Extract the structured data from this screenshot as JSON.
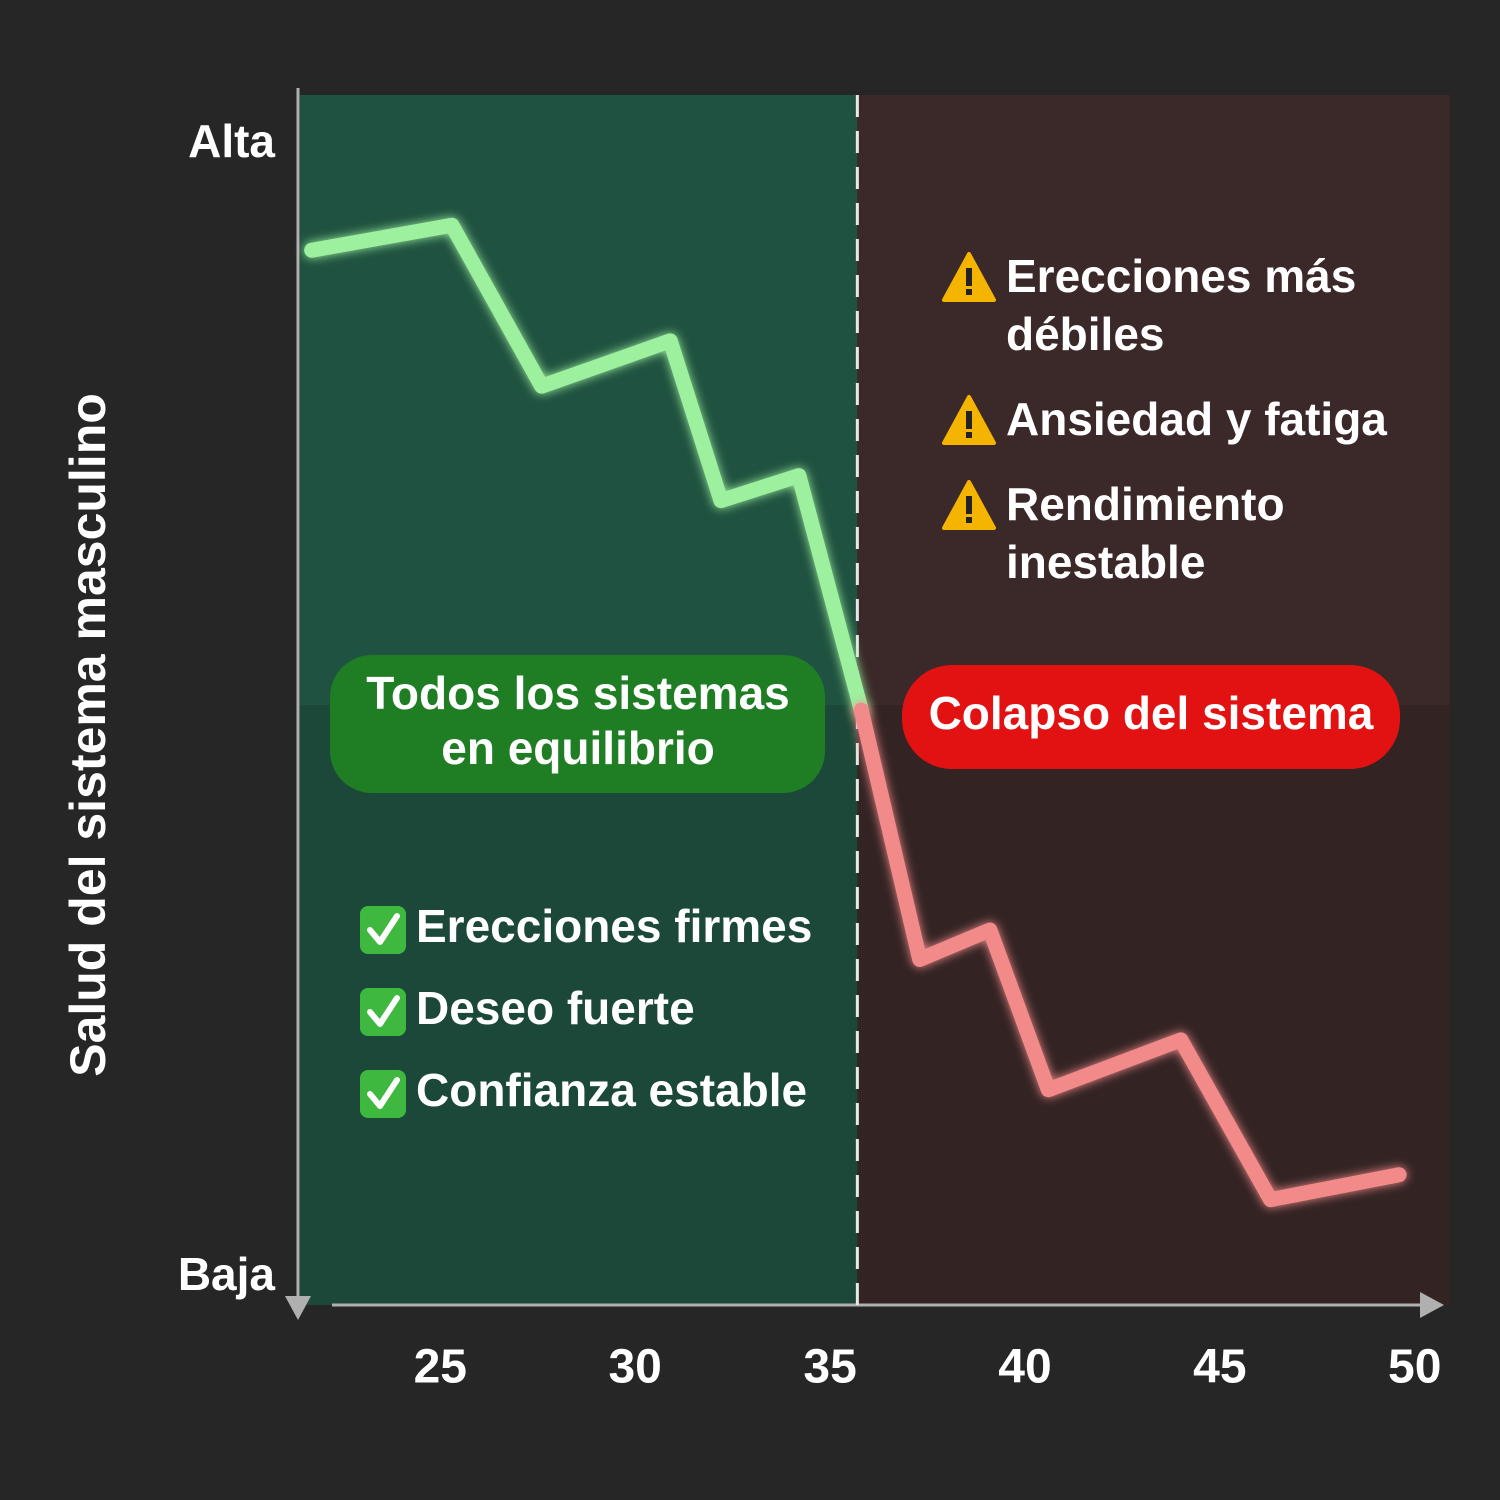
{
  "chart_data": {
    "type": "line",
    "y_axis_title": "Salud del sistema masculino",
    "x": [
      21.7,
      25.3,
      27.6,
      30.9,
      32.2,
      34.2,
      35.8,
      37.3,
      39.1,
      40.6,
      44.0,
      46.3,
      49.6
    ],
    "series": [
      {
        "color": "#9df09e",
        "values": [
          90.7,
          92.9,
          78.7,
          82.7,
          68.6,
          70.8,
          50.1,
          null,
          null,
          null,
          null,
          null,
          null
        ]
      },
      {
        "color": "#f28a8a",
        "values": [
          null,
          null,
          null,
          null,
          null,
          null,
          50.1,
          28.1,
          30.7,
          16.6,
          21.0,
          6.9,
          9.1
        ]
      }
    ],
    "xlim": [
      21.4,
      50.7
    ],
    "xticks": [
      25,
      30,
      35,
      40,
      45,
      50
    ],
    "ylim": [
      -2.4,
      104.4
    ],
    "yticks": [
      {
        "value": 100,
        "label": "Alta"
      },
      {
        "value": 0,
        "label": "Baja"
      }
    ],
    "divider_x": 35.7,
    "zone_colors": [
      "#1f5240",
      "#3b2828"
    ],
    "green_badge": {
      "lines": [
        "Todos los sistemas",
        "en equilibrio"
      ],
      "color": "#1f7d24"
    },
    "red_badge": {
      "lines": [
        "Colapso del sistema"
      ],
      "color": "#e31212"
    },
    "green_list": [
      [
        "Erecciones firmes"
      ],
      [
        "Deseo fuerte"
      ],
      [
        "Confianza estable"
      ]
    ],
    "red_list": [
      [
        "Erecciones más",
        "débiles"
      ],
      [
        "Ansiedad y fatiga"
      ],
      [
        "Rendimiento",
        "inestable"
      ]
    ]
  }
}
